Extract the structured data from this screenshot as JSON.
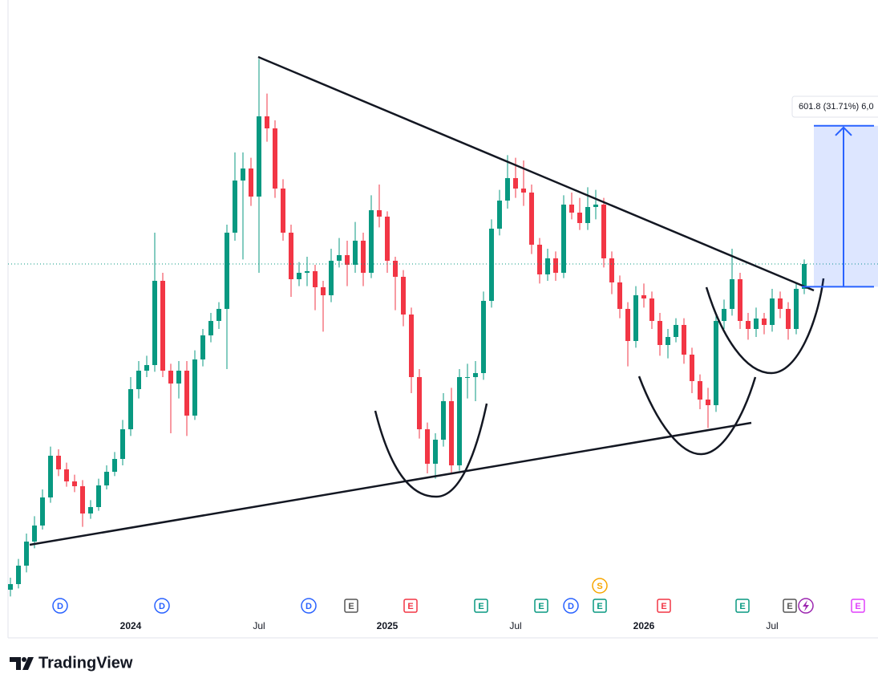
{
  "chart_data": {
    "type": "candlestick",
    "up_color": "#089981",
    "down_color": "#f23645",
    "ylim": [
      585,
      2970
    ],
    "categories": [
      null,
      null,
      null,
      null,
      null,
      null,
      null,
      null,
      null,
      null,
      null,
      null,
      null,
      null,
      null,
      "2024",
      null,
      null,
      null,
      null,
      null,
      null,
      null,
      null,
      null,
      null,
      null,
      null,
      null,
      null,
      null,
      "Jul",
      null,
      null,
      null,
      null,
      null,
      null,
      null,
      null,
      null,
      null,
      null,
      null,
      null,
      null,
      null,
      "2025",
      null,
      null,
      null,
      null,
      null,
      null,
      null,
      null,
      null,
      null,
      null,
      null,
      null,
      null,
      null,
      "Jul",
      null,
      null,
      null,
      null,
      null,
      null,
      null,
      null,
      null,
      null,
      null,
      null,
      null,
      null,
      null,
      "2026",
      null,
      null,
      null,
      null,
      null,
      null,
      null,
      null,
      null,
      null,
      null,
      null,
      null,
      null,
      null,
      "Jul",
      null,
      null,
      null,
      null
    ],
    "ohlc": [
      [
        765,
        810,
        740,
        786
      ],
      [
        786,
        880,
        770,
        855
      ],
      [
        855,
        975,
        830,
        945
      ],
      [
        945,
        1040,
        920,
        1005
      ],
      [
        1005,
        1140,
        990,
        1110
      ],
      [
        1110,
        1300,
        1090,
        1266
      ],
      [
        1266,
        1290,
        1190,
        1215
      ],
      [
        1215,
        1240,
        1150,
        1170
      ],
      [
        1170,
        1195,
        1130,
        1152
      ],
      [
        1152,
        1175,
        1000,
        1050
      ],
      [
        1050,
        1100,
        1030,
        1074
      ],
      [
        1074,
        1180,
        1060,
        1155
      ],
      [
        1155,
        1230,
        1140,
        1206
      ],
      [
        1206,
        1280,
        1190,
        1254
      ],
      [
        1254,
        1400,
        1230,
        1365
      ],
      [
        1365,
        1560,
        1340,
        1515
      ],
      [
        1515,
        1620,
        1480,
        1584
      ],
      [
        1584,
        1640,
        1560,
        1605
      ],
      [
        1605,
        2100,
        1580,
        1920
      ],
      [
        1920,
        1950,
        1560,
        1584
      ],
      [
        1584,
        1610,
        1350,
        1536
      ],
      [
        1536,
        1620,
        1480,
        1584
      ],
      [
        1584,
        1620,
        1340,
        1416
      ],
      [
        1416,
        1660,
        1400,
        1626
      ],
      [
        1626,
        1740,
        1600,
        1716
      ],
      [
        1716,
        1800,
        1690,
        1770
      ],
      [
        1770,
        1840,
        1740,
        1815
      ],
      [
        1815,
        2130,
        1590,
        2100
      ],
      [
        2100,
        2400,
        2070,
        2295
      ],
      [
        2295,
        2400,
        2000,
        2340
      ],
      [
        2340,
        2380,
        2200,
        2235
      ],
      [
        2235,
        2750,
        1950,
        2535
      ],
      [
        2535,
        2620,
        2440,
        2490
      ],
      [
        2490,
        2520,
        2230,
        2265
      ],
      [
        2265,
        2300,
        2070,
        2100
      ],
      [
        2100,
        2130,
        1860,
        1926
      ],
      [
        1926,
        1990,
        1900,
        1950
      ],
      [
        1950,
        2010,
        1900,
        1956
      ],
      [
        1956,
        1980,
        1810,
        1896
      ],
      [
        1896,
        1920,
        1730,
        1866
      ],
      [
        1866,
        2040,
        1840,
        1995
      ],
      [
        1995,
        2080,
        1970,
        2016
      ],
      [
        2016,
        2070,
        1900,
        1980
      ],
      [
        1980,
        2140,
        1950,
        2070
      ],
      [
        2070,
        2100,
        1900,
        1950
      ],
      [
        1950,
        2240,
        1930,
        2184
      ],
      [
        2184,
        2280,
        2120,
        2160
      ],
      [
        2160,
        2180,
        1950,
        1995
      ],
      [
        1995,
        2010,
        1810,
        1935
      ],
      [
        1935,
        1960,
        1750,
        1794
      ],
      [
        1794,
        1820,
        1500,
        1560
      ],
      [
        1560,
        1590,
        1330,
        1365
      ],
      [
        1365,
        1390,
        1200,
        1236
      ],
      [
        1236,
        1350,
        1180,
        1326
      ],
      [
        1326,
        1500,
        1300,
        1470
      ],
      [
        1470,
        1520,
        1200,
        1230
      ],
      [
        1230,
        1590,
        1210,
        1560
      ],
      [
        1560,
        1610,
        1480,
        1560
      ],
      [
        1560,
        1620,
        1470,
        1575
      ],
      [
        1575,
        1880,
        1550,
        1845
      ],
      [
        1845,
        2150,
        1820,
        2115
      ],
      [
        2115,
        2260,
        2090,
        2220
      ],
      [
        2220,
        2390,
        2190,
        2304
      ],
      [
        2304,
        2380,
        2230,
        2265
      ],
      [
        2265,
        2370,
        2200,
        2250
      ],
      [
        2250,
        2280,
        2020,
        2055
      ],
      [
        2055,
        2080,
        1910,
        1944
      ],
      [
        1944,
        2040,
        1920,
        2004
      ],
      [
        2004,
        2030,
        1920,
        1950
      ],
      [
        1950,
        2240,
        1930,
        2205
      ],
      [
        2205,
        2250,
        2150,
        2175
      ],
      [
        2175,
        2230,
        2110,
        2136
      ],
      [
        2136,
        2270,
        2110,
        2196
      ],
      [
        2196,
        2260,
        2150,
        2205
      ],
      [
        2205,
        2230,
        1970,
        2004
      ],
      [
        2004,
        2030,
        1870,
        1914
      ],
      [
        1914,
        1940,
        1780,
        1815
      ],
      [
        1815,
        1840,
        1600,
        1695
      ],
      [
        1695,
        1900,
        1670,
        1866
      ],
      [
        1866,
        1910,
        1820,
        1854
      ],
      [
        1854,
        1880,
        1740,
        1770
      ],
      [
        1770,
        1800,
        1640,
        1680
      ],
      [
        1680,
        1740,
        1630,
        1710
      ],
      [
        1710,
        1780,
        1690,
        1755
      ],
      [
        1755,
        1780,
        1610,
        1644
      ],
      [
        1644,
        1670,
        1500,
        1545
      ],
      [
        1545,
        1570,
        1440,
        1476
      ],
      [
        1476,
        1520,
        1370,
        1455
      ],
      [
        1455,
        1800,
        1430,
        1770
      ],
      [
        1770,
        1850,
        1740,
        1815
      ],
      [
        1815,
        2040,
        1790,
        1926
      ],
      [
        1926,
        1950,
        1740,
        1770
      ],
      [
        1770,
        1800,
        1700,
        1740
      ],
      [
        1740,
        1820,
        1710,
        1779
      ],
      [
        1779,
        1800,
        1720,
        1755
      ],
      [
        1755,
        1890,
        1730,
        1854
      ],
      [
        1854,
        1880,
        1780,
        1815
      ],
      [
        1815,
        1840,
        1700,
        1740
      ],
      [
        1740,
        1910,
        1720,
        1890
      ],
      [
        1890,
        2000,
        1870,
        1983
      ]
    ],
    "measure": {
      "from": 1897.8,
      "to": 2499.6,
      "label": "601.8 (31.71%) 6,0"
    },
    "events": [
      "D",
      "D",
      "D",
      "E",
      "E",
      "E",
      "E",
      "D",
      "E",
      "S",
      "E",
      "E",
      "E",
      "E"
    ],
    "brand": "TradingView"
  }
}
